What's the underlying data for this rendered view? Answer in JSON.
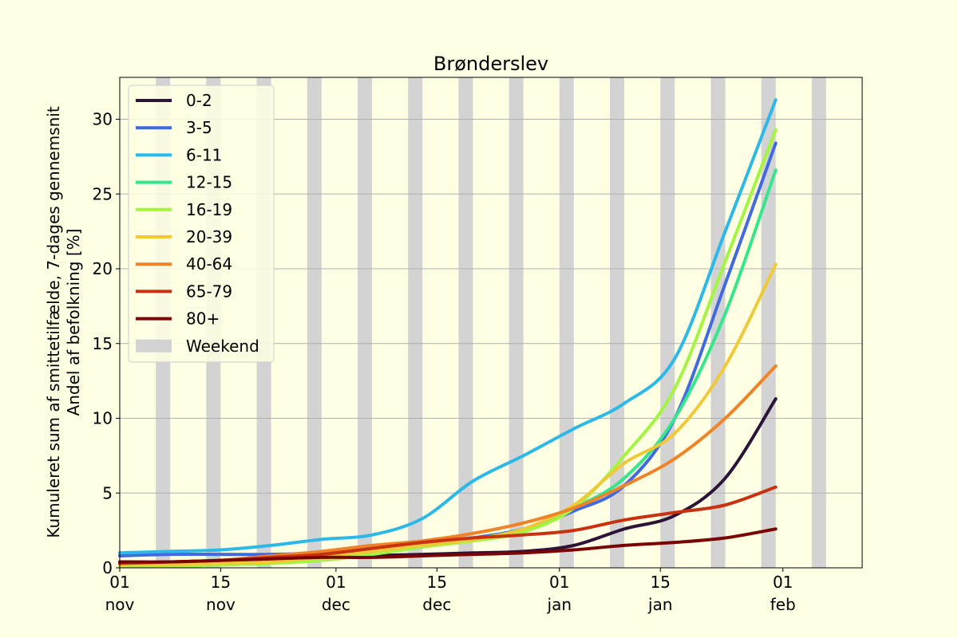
{
  "chart_data": {
    "type": "line",
    "title": "Brønderslev",
    "ylabel_line1": "Kumuleret sum af smittetilfælde, 7-dages gennemsnit",
    "ylabel_line2": "Andel af befolkning [%]",
    "xlabel": "",
    "x_start": "2021-11-01",
    "x_end": "2022-02-12",
    "ylim": [
      0,
      32.8
    ],
    "yticks": [
      0,
      5,
      10,
      15,
      20,
      25,
      30
    ],
    "xticks": [
      {
        "date": "2021-11-01",
        "line1": "01",
        "line2": "nov"
      },
      {
        "date": "2021-11-15",
        "line1": "15",
        "line2": "nov"
      },
      {
        "date": "2021-12-01",
        "line1": "01",
        "line2": "dec"
      },
      {
        "date": "2021-12-15",
        "line1": "15",
        "line2": "dec"
      },
      {
        "date": "2022-01-01",
        "line1": "01",
        "line2": "jan"
      },
      {
        "date": "2022-01-15",
        "line1": "15",
        "line2": "jan"
      },
      {
        "date": "2022-02-01",
        "line1": "01",
        "line2": "feb"
      }
    ],
    "grid": "horizontal",
    "legend_position": "top-left",
    "weekend_label": "Weekend",
    "weekend_color": "#d3d3d3",
    "weekend_dates": [
      "2021-11-06",
      "2021-11-13",
      "2021-11-20",
      "2021-11-27",
      "2021-12-04",
      "2021-12-11",
      "2021-12-18",
      "2021-12-25",
      "2022-01-01",
      "2022-01-08",
      "2022-01-15",
      "2022-01-22",
      "2022-01-29",
      "2022-02-05"
    ],
    "x": [
      "2021-11-01",
      "2021-11-08",
      "2021-11-15",
      "2021-11-22",
      "2021-11-29",
      "2021-12-06",
      "2021-12-13",
      "2021-12-20",
      "2021-12-27",
      "2022-01-03",
      "2022-01-10",
      "2022-01-17",
      "2022-01-24",
      "2022-01-31"
    ],
    "series": [
      {
        "name": "0-2",
        "color": "#2b1437",
        "values": [
          0.3,
          0.3,
          0.3,
          0.4,
          0.6,
          0.8,
          0.9,
          1.0,
          1.1,
          1.5,
          2.6,
          3.5,
          6.0,
          11.3
        ]
      },
      {
        "name": "3-5",
        "color": "#4169e1",
        "values": [
          0.8,
          0.9,
          0.9,
          0.9,
          1.0,
          1.2,
          1.6,
          2.0,
          2.6,
          3.8,
          5.5,
          10.0,
          19.0,
          28.4
        ]
      },
      {
        "name": "6-11",
        "color": "#2cb8e8",
        "values": [
          1.0,
          1.1,
          1.2,
          1.5,
          1.9,
          2.2,
          3.3,
          5.8,
          7.5,
          9.3,
          11.0,
          14.0,
          22.5,
          31.3
        ]
      },
      {
        "name": "12-15",
        "color": "#36e68c",
        "values": [
          0.1,
          0.1,
          0.2,
          0.3,
          0.5,
          0.9,
          1.4,
          1.9,
          2.6,
          4.0,
          6.0,
          10.0,
          17.0,
          26.6
        ]
      },
      {
        "name": "16-19",
        "color": "#a3f542",
        "values": [
          0.1,
          0.1,
          0.2,
          0.3,
          0.5,
          0.9,
          1.4,
          1.8,
          2.4,
          4.0,
          7.5,
          12.0,
          20.5,
          29.3
        ]
      },
      {
        "name": "20-39",
        "color": "#efc937",
        "values": [
          0.2,
          0.2,
          0.3,
          0.4,
          0.7,
          1.1,
          1.5,
          1.9,
          2.6,
          4.2,
          7.0,
          9.0,
          13.5,
          20.3
        ]
      },
      {
        "name": "40-64",
        "color": "#f08328",
        "values": [
          0.3,
          0.4,
          0.5,
          0.8,
          1.1,
          1.5,
          1.8,
          2.3,
          3.0,
          4.0,
          5.5,
          7.3,
          10.0,
          13.5
        ]
      },
      {
        "name": "65-79",
        "color": "#c83210",
        "values": [
          0.3,
          0.4,
          0.5,
          0.7,
          0.9,
          1.3,
          1.7,
          2.0,
          2.2,
          2.5,
          3.2,
          3.7,
          4.2,
          5.4
        ]
      },
      {
        "name": "80+",
        "color": "#7a0404",
        "values": [
          0.4,
          0.4,
          0.5,
          0.6,
          0.7,
          0.7,
          0.8,
          0.9,
          1.0,
          1.2,
          1.5,
          1.7,
          2.0,
          2.6
        ]
      }
    ]
  }
}
